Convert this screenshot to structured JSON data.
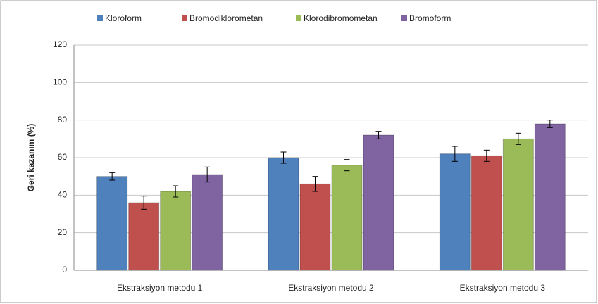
{
  "chart_data": {
    "type": "bar",
    "y_label": "Geri kazanım (%)",
    "categories": [
      "Ekstraksiyon metodu 1",
      "Ekstraksiyon metodu 2",
      "Ekstraksiyon metodu 3"
    ],
    "series": [
      {
        "name": "Kloroform",
        "color": "#4f81bd",
        "values": [
          50,
          60,
          62
        ],
        "errors": [
          2,
          3,
          4
        ]
      },
      {
        "name": "Bromodiklorometan",
        "color": "#c0504d",
        "values": [
          36,
          46,
          61
        ],
        "errors": [
          3.5,
          4,
          3
        ]
      },
      {
        "name": "Klorodibromometan",
        "color": "#9bbb59",
        "values": [
          42,
          56,
          70
        ],
        "errors": [
          3,
          3,
          3
        ]
      },
      {
        "name": "Bromoform",
        "color": "#8064a2",
        "values": [
          51,
          72,
          78
        ],
        "errors": [
          4,
          2,
          2
        ]
      }
    ],
    "ylim": [
      0,
      120
    ],
    "yticks": [
      0,
      20,
      40,
      60,
      80,
      100,
      120
    ],
    "grid": true,
    "legend": "top"
  }
}
